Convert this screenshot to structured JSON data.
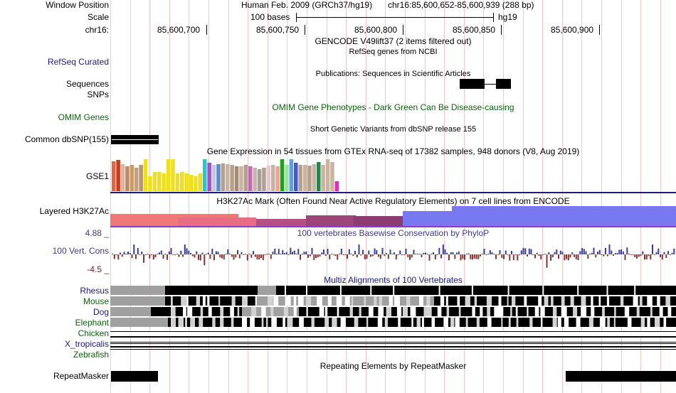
{
  "header": {
    "window_position_label": "Window Position",
    "scale_label": "Scale",
    "chrom_label": "chr16:",
    "assembly_text": "Human Feb. 2009 (GRCh37/hg19)",
    "position_text": "chr16:85,600,652-85,600,939 (288 bp)",
    "scale_text": "100 bases",
    "db_text": "hg19",
    "ruler_ticks": [
      "85,600,700",
      "85,600,750",
      "85,600,800",
      "85,600,850",
      "85,600,900"
    ]
  },
  "tracks": {
    "gencode_title": "GENCODE V49lift37 (2 items filtered out)",
    "refseq_label": "RefSeq Curated",
    "refseq_title": "RefSeq genes from NCBI",
    "publications_title": "Publications: Sequences in Scientific Articles",
    "sequences_label": "Sequences",
    "snps_label": "SNPs",
    "omim_label": "OMIM Genes",
    "omim_title": "OMIM Gene Phenotypes - Dark Green Can Be Disease-causing",
    "snp_title": "Short Genetic Variants from dbSNP release 155",
    "common_dbsnp_label": "Common dbSNP(155)",
    "gtex_title": "Gene Expression in 54 tissues from GTEx RNA-seq of 17382 samples, 948 donors (V8, Aug 2019)",
    "gse1_label": "GSE1",
    "h3k27ac_label": "Layered H3K27Ac",
    "h3k27ac_title": "H3K27Ac Mark (Often Found Near Active Regulatory Elements) on 7 cell lines from ENCODE",
    "phylo_max": "4.88 _",
    "phylo_min": "-4.5 _",
    "phylo_label": "100 Vert. Cons",
    "phylo_title": "100 vertebrates Basewise Conservation by PhyloP",
    "multiz_title": "Multiz Alignments of 100 Vertebrates",
    "species": [
      "Rhesus",
      "Mouse",
      "Dog",
      "Elephant",
      "Chicken",
      "X_tropicalis",
      "Zebrafish"
    ],
    "repeatmasker_label": "RepeatMasker",
    "repeatmasker_title": "Repeating Elements by RepeatMasker"
  },
  "gtex_bars": {
    "values": [
      0.92,
      0.95,
      0.82,
      0.75,
      0.8,
      0.72,
      0.8,
      0.98,
      0.45,
      0.58,
      0.58,
      0.55,
      0.98,
      0.98,
      0.55,
      0.58,
      0.55,
      0.5,
      0.45,
      0.55,
      0.98,
      0.88,
      0.8,
      0.82,
      0.85,
      0.82,
      0.8,
      0.75,
      0.75,
      0.8,
      0.75,
      0.72,
      0.68,
      0.72,
      0.78,
      0.8,
      0.75,
      0.98,
      0.8,
      0.98,
      0.88,
      0.8,
      0.8,
      0.78,
      0.82,
      0.9,
      0.8,
      0.98,
      0.9,
      0.3
    ],
    "colors": [
      "#e8643c",
      "#c83c1e",
      "#dcb4a0",
      "#b48c6e",
      "#dc9650",
      "#c8a078",
      "#b49678",
      "#eee01e",
      "#eee01e",
      "#eee01e",
      "#eee01e",
      "#eee01e",
      "#eee01e",
      "#eee01e",
      "#eee01e",
      "#eee01e",
      "#eee01e",
      "#eee01e",
      "#eee01e",
      "#eee01e",
      "#28c8c8",
      "#a050c8",
      "#c8c8dc",
      "#5a8cc8",
      "#b4a08c",
      "#c8b4a0",
      "#b4a08c",
      "#a08c78",
      "#c8b4a0",
      "#b4a08c",
      "#c864c8",
      "#c8b4a0",
      "#a0a0a0",
      "#b4a08c",
      "#e6c8c8",
      "#c8b4a0",
      "#f0a0a0",
      "#1ea01e",
      "#a0e0a0",
      "#5aa0e6",
      "#3c5ad2",
      "#b4a08c",
      "#c8b4a0",
      "#b4a08c",
      "#c8b4a0",
      "#1e8c46",
      "#c8b4a0",
      "#c8b4a0",
      "#c8b4a0",
      "#f01ed2"
    ]
  },
  "colors": {
    "ruler_grid": "#f2caca",
    "track_rule": "#1a1a80",
    "rule_purple": "#8c3cc8",
    "phylo_pos": "#3b3b99",
    "phylo_neg": "#883333",
    "h3k_red": "#f07878",
    "h3k_maroon": "#8c3c6e",
    "h3k_blue": "#7878f0",
    "multiz_grey": "#a0a0a0",
    "multiz_light": "#d2d2d2"
  }
}
